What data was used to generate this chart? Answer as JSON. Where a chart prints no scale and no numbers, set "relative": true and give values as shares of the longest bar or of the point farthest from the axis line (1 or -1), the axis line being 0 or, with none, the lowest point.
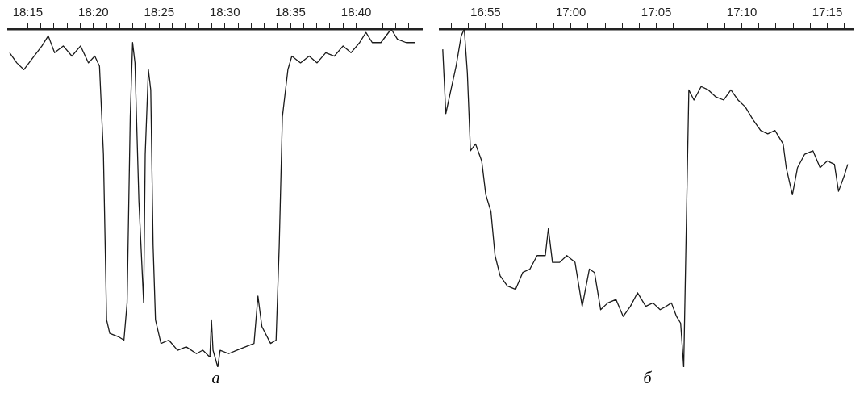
{
  "chart_data": [
    {
      "type": "line",
      "relative": true,
      "legend": false,
      "grid": false,
      "marker": "none",
      "annotations": [
        "а"
      ],
      "xlim": [
        18.225,
        18.75
      ],
      "xticks": [
        {
          "value": 18.2333,
          "label": null
        },
        {
          "value": 18.25,
          "label": "18:15"
        },
        {
          "value": 18.2667,
          "label": null
        },
        {
          "value": 18.2833,
          "label": null
        },
        {
          "value": 18.3,
          "label": null
        },
        {
          "value": 18.3167,
          "label": null
        },
        {
          "value": 18.3333,
          "label": "18:20"
        },
        {
          "value": 18.35,
          "label": null
        },
        {
          "value": 18.3667,
          "label": null
        },
        {
          "value": 18.3833,
          "label": null
        },
        {
          "value": 18.4,
          "label": null
        },
        {
          "value": 18.4167,
          "label": "18:25"
        },
        {
          "value": 18.4333,
          "label": null
        },
        {
          "value": 18.45,
          "label": null
        },
        {
          "value": 18.4667,
          "label": null
        },
        {
          "value": 18.4833,
          "label": null
        },
        {
          "value": 18.5,
          "label": "18:30"
        },
        {
          "value": 18.5167,
          "label": null
        },
        {
          "value": 18.5333,
          "label": null
        },
        {
          "value": 18.55,
          "label": null
        },
        {
          "value": 18.5667,
          "label": null
        },
        {
          "value": 18.5833,
          "label": "18:35"
        },
        {
          "value": 18.6,
          "label": null
        },
        {
          "value": 18.6167,
          "label": null
        },
        {
          "value": 18.6333,
          "label": null
        },
        {
          "value": 18.65,
          "label": null
        },
        {
          "value": 18.6667,
          "label": "18:40"
        },
        {
          "value": 18.6833,
          "label": null
        },
        {
          "value": 18.7,
          "label": null
        },
        {
          "value": 18.7167,
          "label": null
        },
        {
          "value": 18.7333,
          "label": null
        }
      ],
      "series": [
        {
          "color": "#1a1a1a",
          "x": [
            18.227,
            18.236,
            18.245,
            18.258,
            18.268,
            18.276,
            18.284,
            18.295,
            18.306,
            18.317,
            18.327,
            18.335,
            18.341,
            18.346,
            18.35,
            18.354,
            18.365,
            18.372,
            18.376,
            18.38,
            18.383,
            18.386,
            18.391,
            18.397,
            18.399,
            18.403,
            18.406,
            18.409,
            18.412,
            18.419,
            18.429,
            18.44,
            18.451,
            18.464,
            18.472,
            18.481,
            18.483,
            18.485,
            18.491,
            18.494,
            18.505,
            18.515,
            18.526,
            18.537,
            18.542,
            18.547,
            18.558,
            18.565,
            18.569,
            18.573,
            18.58,
            18.585,
            18.596,
            18.607,
            18.617,
            18.628,
            18.639,
            18.65,
            18.66,
            18.671,
            18.679,
            18.687,
            18.698,
            18.711,
            18.719,
            18.73,
            18.741
          ],
          "values": [
            0.93,
            0.9,
            0.88,
            0.92,
            0.95,
            0.98,
            0.93,
            0.95,
            0.92,
            0.95,
            0.9,
            0.92,
            0.89,
            0.63,
            0.14,
            0.1,
            0.09,
            0.08,
            0.19,
            0.74,
            0.96,
            0.9,
            0.49,
            0.19,
            0.63,
            0.88,
            0.82,
            0.36,
            0.14,
            0.07,
            0.08,
            0.05,
            0.06,
            0.04,
            0.05,
            0.03,
            0.14,
            0.05,
            0,
            0.05,
            0.04,
            0.05,
            0.06,
            0.07,
            0.21,
            0.12,
            0.07,
            0.08,
            0.36,
            0.74,
            0.88,
            0.92,
            0.9,
            0.92,
            0.9,
            0.93,
            0.92,
            0.95,
            0.93,
            0.96,
            0.99,
            0.96,
            0.96,
            1,
            0.97,
            0.96,
            0.96
          ]
        }
      ]
    },
    {
      "type": "line",
      "relative": true,
      "legend": false,
      "grid": false,
      "marker": "none",
      "annotations": [
        "б"
      ],
      "xlim": [
        16.872,
        17.2756
      ],
      "xticks": [
        {
          "value": 16.8833,
          "label": null
        },
        {
          "value": 16.9,
          "label": null
        },
        {
          "value": 16.9167,
          "label": "16:55"
        },
        {
          "value": 16.9333,
          "label": null
        },
        {
          "value": 16.95,
          "label": null
        },
        {
          "value": 16.9667,
          "label": null
        },
        {
          "value": 16.9833,
          "label": null
        },
        {
          "value": 17,
          "label": "17:00"
        },
        {
          "value": 17.0167,
          "label": null
        },
        {
          "value": 17.0333,
          "label": null
        },
        {
          "value": 17.05,
          "label": null
        },
        {
          "value": 17.0667,
          "label": null
        },
        {
          "value": 17.0833,
          "label": "17:05"
        },
        {
          "value": 17.1,
          "label": null
        },
        {
          "value": 17.1167,
          "label": null
        },
        {
          "value": 17.1333,
          "label": null
        },
        {
          "value": 17.15,
          "label": null
        },
        {
          "value": 17.1667,
          "label": "17:10"
        },
        {
          "value": 17.1833,
          "label": null
        },
        {
          "value": 17.2,
          "label": null
        },
        {
          "value": 17.2167,
          "label": null
        },
        {
          "value": 17.2333,
          "label": null
        },
        {
          "value": 17.25,
          "label": "17:15"
        },
        {
          "value": 17.2667,
          "label": null
        }
      ],
      "series": [
        {
          "color": "#1a1a1a",
          "x": [
            16.875,
            16.878,
            16.883,
            16.888,
            16.893,
            16.896,
            16.899,
            16.902,
            16.907,
            16.913,
            16.917,
            16.922,
            16.926,
            16.931,
            16.938,
            16.946,
            16.953,
            16.96,
            16.967,
            16.975,
            16.978,
            16.982,
            16.989,
            16.996,
            17.004,
            17.011,
            17.018,
            17.023,
            17.029,
            17.036,
            17.044,
            17.051,
            17.058,
            17.065,
            17.073,
            17.08,
            17.087,
            17.093,
            17.098,
            17.103,
            17.107,
            17.11,
            17.112,
            17.115,
            17.12,
            17.127,
            17.134,
            17.141,
            17.149,
            17.156,
            17.163,
            17.17,
            17.178,
            17.185,
            17.192,
            17.199,
            17.207,
            17.21,
            17.216,
            17.221,
            17.228,
            17.236,
            17.243,
            17.25,
            17.257,
            17.261,
            17.267,
            17.27
          ],
          "values": [
            0.94,
            0.75,
            0.82,
            0.89,
            0.98,
            1,
            0.87,
            0.64,
            0.66,
            0.61,
            0.51,
            0.46,
            0.33,
            0.27,
            0.24,
            0.23,
            0.28,
            0.29,
            0.33,
            0.33,
            0.41,
            0.31,
            0.31,
            0.33,
            0.31,
            0.18,
            0.29,
            0.28,
            0.17,
            0.19,
            0.2,
            0.15,
            0.18,
            0.22,
            0.18,
            0.19,
            0.17,
            0.18,
            0.19,
            0.15,
            0.13,
            0,
            0.33,
            0.82,
            0.79,
            0.83,
            0.82,
            0.8,
            0.79,
            0.82,
            0.79,
            0.77,
            0.73,
            0.7,
            0.69,
            0.7,
            0.66,
            0.59,
            0.51,
            0.59,
            0.63,
            0.64,
            0.59,
            0.61,
            0.6,
            0.52,
            0.57,
            0.6
          ]
        }
      ]
    }
  ]
}
